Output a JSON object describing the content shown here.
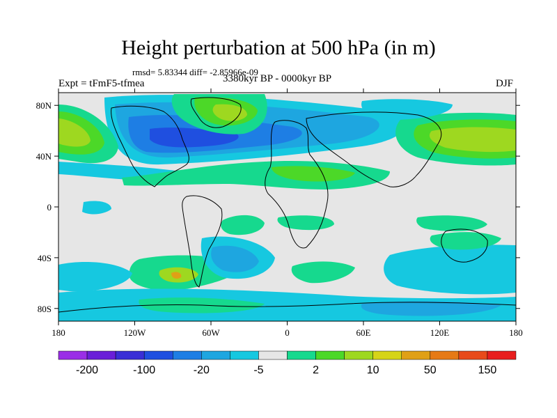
{
  "chart_data": {
    "type": "heatmap",
    "title": "Height perturbation at 500 hPa (in m)",
    "stats_label": "rmsd= 5.83344 diff= -2.85966e-09",
    "experiment_label": "Expt = tFmF5-tfmea",
    "period_label": "3380kyr BP - 0000kyr BP",
    "season_label": "DJF",
    "x_ticks": [
      "180",
      "120W",
      "60W",
      "0",
      "60E",
      "120E",
      "180"
    ],
    "x_tick_values": [
      -180,
      -120,
      -60,
      0,
      60,
      120,
      180
    ],
    "y_ticks": [
      "80N",
      "40N",
      "0",
      "40S",
      "80S"
    ],
    "y_tick_values": [
      80,
      40,
      0,
      -40,
      -80
    ],
    "lon_range": [
      -180,
      180
    ],
    "lat_range": [
      -90,
      90
    ],
    "colorbar_labels": [
      "-200",
      "-100",
      "-20",
      "-5",
      "2",
      "10",
      "50",
      "150"
    ],
    "colorbar_colors": [
      "#9a2ee6",
      "#6a1fd8",
      "#3a2fd6",
      "#1f4fe0",
      "#1e7ee4",
      "#1ea6e0",
      "#16c8e0",
      "#e6e6e6",
      "#16d98e",
      "#4cd828",
      "#9ed820",
      "#d6d418",
      "#e0a016",
      "#e67a16",
      "#e84a1a",
      "#e81e1e"
    ]
  }
}
